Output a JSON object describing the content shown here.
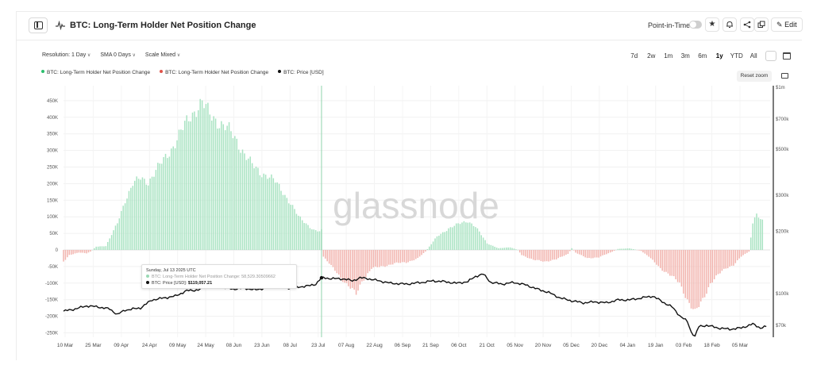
{
  "header": {
    "title": "BTC: Long-Term Holder Net Position Change",
    "point_in_time_label": "Point-in-Time",
    "edit_label": "Edit"
  },
  "controls": {
    "resolution": "Resolution: 1 Day",
    "sma": "SMA 0 Days",
    "scale": "Scale Mixed"
  },
  "ranges": [
    "7d",
    "2w",
    "1m",
    "3m",
    "6m",
    "1y",
    "YTD",
    "All"
  ],
  "active_range": "1y",
  "reset_zoom_label": "Reset zoom",
  "tooltip": {
    "date": "Sunday, Jul 13 2025 UTC",
    "series_label": "BTC: Long-Term Holder Net Position Change:",
    "series_value": "58,529.30509662",
    "price_label": "BTC: Price [USD]",
    "price_value": "$119,057.21"
  },
  "watermark": "glassnode",
  "colors": {
    "positive": "#2cbf6e",
    "negative": "#e0534a",
    "price": "#111111"
  },
  "chart_data": {
    "type": "bar",
    "title": "BTC: Long-Term Holder Net Position Change",
    "legend": [
      {
        "name": "BTC: Long-Term Holder Net Position Change",
        "color": "#2cbf6e"
      },
      {
        "name": "BTC: Long-Term Holder Net Position Change",
        "color": "#e0534a"
      },
      {
        "name": "BTC: Price [USD]",
        "color": "#111111"
      }
    ],
    "legend_position": "top-left",
    "x_ticks": [
      "10 Mar",
      "25 Mar",
      "09 Apr",
      "24 Apr",
      "09 May",
      "24 May",
      "08 Jun",
      "23 Jun",
      "08 Jul",
      "23 Jul",
      "07 Aug",
      "22 Aug",
      "06 Sep",
      "21 Sep",
      "06 Oct",
      "21 Oct",
      "05 Nov",
      "20 Nov",
      "05 Dec",
      "20 Dec",
      "04 Jan",
      "19 Jan",
      "03 Feb",
      "18 Feb",
      "05 Mar"
    ],
    "y_left": {
      "ticks": [
        "450K",
        "400K",
        "350K",
        "300K",
        "250K",
        "200K",
        "150K",
        "100K",
        "50K",
        "0",
        "-50K",
        "-100K",
        "-150K",
        "-200K",
        "-250K"
      ],
      "range": [
        -270000,
        470000
      ]
    },
    "y_right": {
      "scale": "log",
      "ticks": [
        "$1m",
        "$700k",
        "$500k",
        "$300k",
        "$200k",
        "$100k",
        "$70k"
      ],
      "range": [
        58000,
        1000000
      ]
    },
    "grid": true,
    "net_position_change": {
      "day_index_start": 0,
      "day_index_end": 367,
      "control_points": [
        [
          0,
          -35000
        ],
        [
          3,
          -15000
        ],
        [
          8,
          -8000
        ],
        [
          12,
          -10000
        ],
        [
          14,
          -5000
        ],
        [
          17,
          10000
        ],
        [
          22,
          12000
        ],
        [
          28,
          80000
        ],
        [
          32,
          150000
        ],
        [
          36,
          200000
        ],
        [
          40,
          215000
        ],
        [
          44,
          205000
        ],
        [
          48,
          240000
        ],
        [
          52,
          270000
        ],
        [
          56,
          305000
        ],
        [
          60,
          345000
        ],
        [
          64,
          385000
        ],
        [
          66,
          405000
        ],
        [
          68,
          420000
        ],
        [
          70,
          435000
        ],
        [
          72,
          443000
        ],
        [
          74,
          425000
        ],
        [
          76,
          408000
        ],
        [
          79,
          395000
        ],
        [
          82,
          380000
        ],
        [
          86,
          360000
        ],
        [
          90,
          330000
        ],
        [
          94,
          290000
        ],
        [
          98,
          255000
        ],
        [
          102,
          235000
        ],
        [
          106,
          225000
        ],
        [
          110,
          205000
        ],
        [
          114,
          175000
        ],
        [
          118,
          140000
        ],
        [
          122,
          100000
        ],
        [
          126,
          80000
        ],
        [
          130,
          60000
        ],
        [
          133,
          55000
        ],
        [
          134,
          58529
        ],
        [
          135,
          -20000
        ],
        [
          140,
          -55000
        ],
        [
          145,
          -90000
        ],
        [
          150,
          -120000
        ],
        [
          152,
          -135000
        ],
        [
          155,
          -95000
        ],
        [
          160,
          -55000
        ],
        [
          166,
          -50000
        ],
        [
          172,
          -40000
        ],
        [
          178,
          -38000
        ],
        [
          184,
          -25000
        ],
        [
          188,
          -5000
        ],
        [
          190,
          10000
        ],
        [
          194,
          40000
        ],
        [
          200,
          65000
        ],
        [
          206,
          80000
        ],
        [
          210,
          88000
        ],
        [
          214,
          70000
        ],
        [
          220,
          20000
        ],
        [
          226,
          5000
        ],
        [
          232,
          8000
        ],
        [
          236,
          0
        ],
        [
          238,
          -15000
        ],
        [
          244,
          -30000
        ],
        [
          250,
          -35000
        ],
        [
          256,
          -28000
        ],
        [
          262,
          -12000
        ],
        [
          264,
          5000
        ],
        [
          266,
          -8000
        ],
        [
          272,
          -25000
        ],
        [
          278,
          -22000
        ],
        [
          284,
          -8000
        ],
        [
          288,
          3000
        ],
        [
          294,
          5000
        ],
        [
          300,
          -3000
        ],
        [
          304,
          -20000
        ],
        [
          310,
          -55000
        ],
        [
          316,
          -80000
        ],
        [
          320,
          -100000
        ],
        [
          324,
          -150000
        ],
        [
          328,
          -190000
        ],
        [
          332,
          -150000
        ],
        [
          336,
          -100000
        ],
        [
          340,
          -75000
        ],
        [
          344,
          -55000
        ],
        [
          348,
          -45000
        ],
        [
          352,
          -20000
        ],
        [
          356,
          -5000
        ],
        [
          358,
          80000
        ],
        [
          360,
          105000
        ],
        [
          363,
          90000
        ]
      ]
    },
    "price_usd": {
      "control_points": [
        [
          0,
          82000
        ],
        [
          6,
          84000
        ],
        [
          12,
          87000
        ],
        [
          18,
          86000
        ],
        [
          24,
          84000
        ],
        [
          28,
          79000
        ],
        [
          32,
          83000
        ],
        [
          36,
          84000
        ],
        [
          40,
          85000
        ],
        [
          46,
          93000
        ],
        [
          52,
          95000
        ],
        [
          58,
          97000
        ],
        [
          64,
          103000
        ],
        [
          70,
          104000
        ],
        [
          76,
          109000
        ],
        [
          82,
          107000
        ],
        [
          88,
          105000
        ],
        [
          94,
          106000
        ],
        [
          100,
          104000
        ],
        [
          106,
          107000
        ],
        [
          112,
          108000
        ],
        [
          118,
          106000
        ],
        [
          124,
          108000
        ],
        [
          128,
          109000
        ],
        [
          131,
          111000
        ],
        [
          134,
          119057
        ],
        [
          140,
          118000
        ],
        [
          146,
          117500
        ],
        [
          150,
          115000
        ],
        [
          154,
          119000
        ],
        [
          158,
          118000
        ],
        [
          164,
          115000
        ],
        [
          170,
          112000
        ],
        [
          178,
          111000
        ],
        [
          186,
          113000
        ],
        [
          192,
          115000
        ],
        [
          198,
          114000
        ],
        [
          204,
          112000
        ],
        [
          210,
          114000
        ],
        [
          214,
          121000
        ],
        [
          218,
          124000
        ],
        [
          222,
          113000
        ],
        [
          228,
          111000
        ],
        [
          234,
          113000
        ],
        [
          240,
          110000
        ],
        [
          246,
          105000
        ],
        [
          252,
          101000
        ],
        [
          258,
          95000
        ],
        [
          264,
          92000
        ],
        [
          270,
          90000
        ],
        [
          276,
          91000
        ],
        [
          282,
          90000
        ],
        [
          288,
          93000
        ],
        [
          294,
          93000
        ],
        [
          300,
          95000
        ],
        [
          306,
          97000
        ],
        [
          312,
          90000
        ],
        [
          316,
          86000
        ],
        [
          320,
          78000
        ],
        [
          324,
          73000
        ],
        [
          326,
          65000
        ],
        [
          328,
          62000
        ],
        [
          330,
          69000
        ],
        [
          334,
          70000
        ],
        [
          340,
          68000
        ],
        [
          346,
          67000
        ],
        [
          352,
          68000
        ],
        [
          358,
          71000
        ],
        [
          362,
          68000
        ],
        [
          365,
          69000
        ]
      ]
    },
    "tooltip_day_index": 134
  }
}
